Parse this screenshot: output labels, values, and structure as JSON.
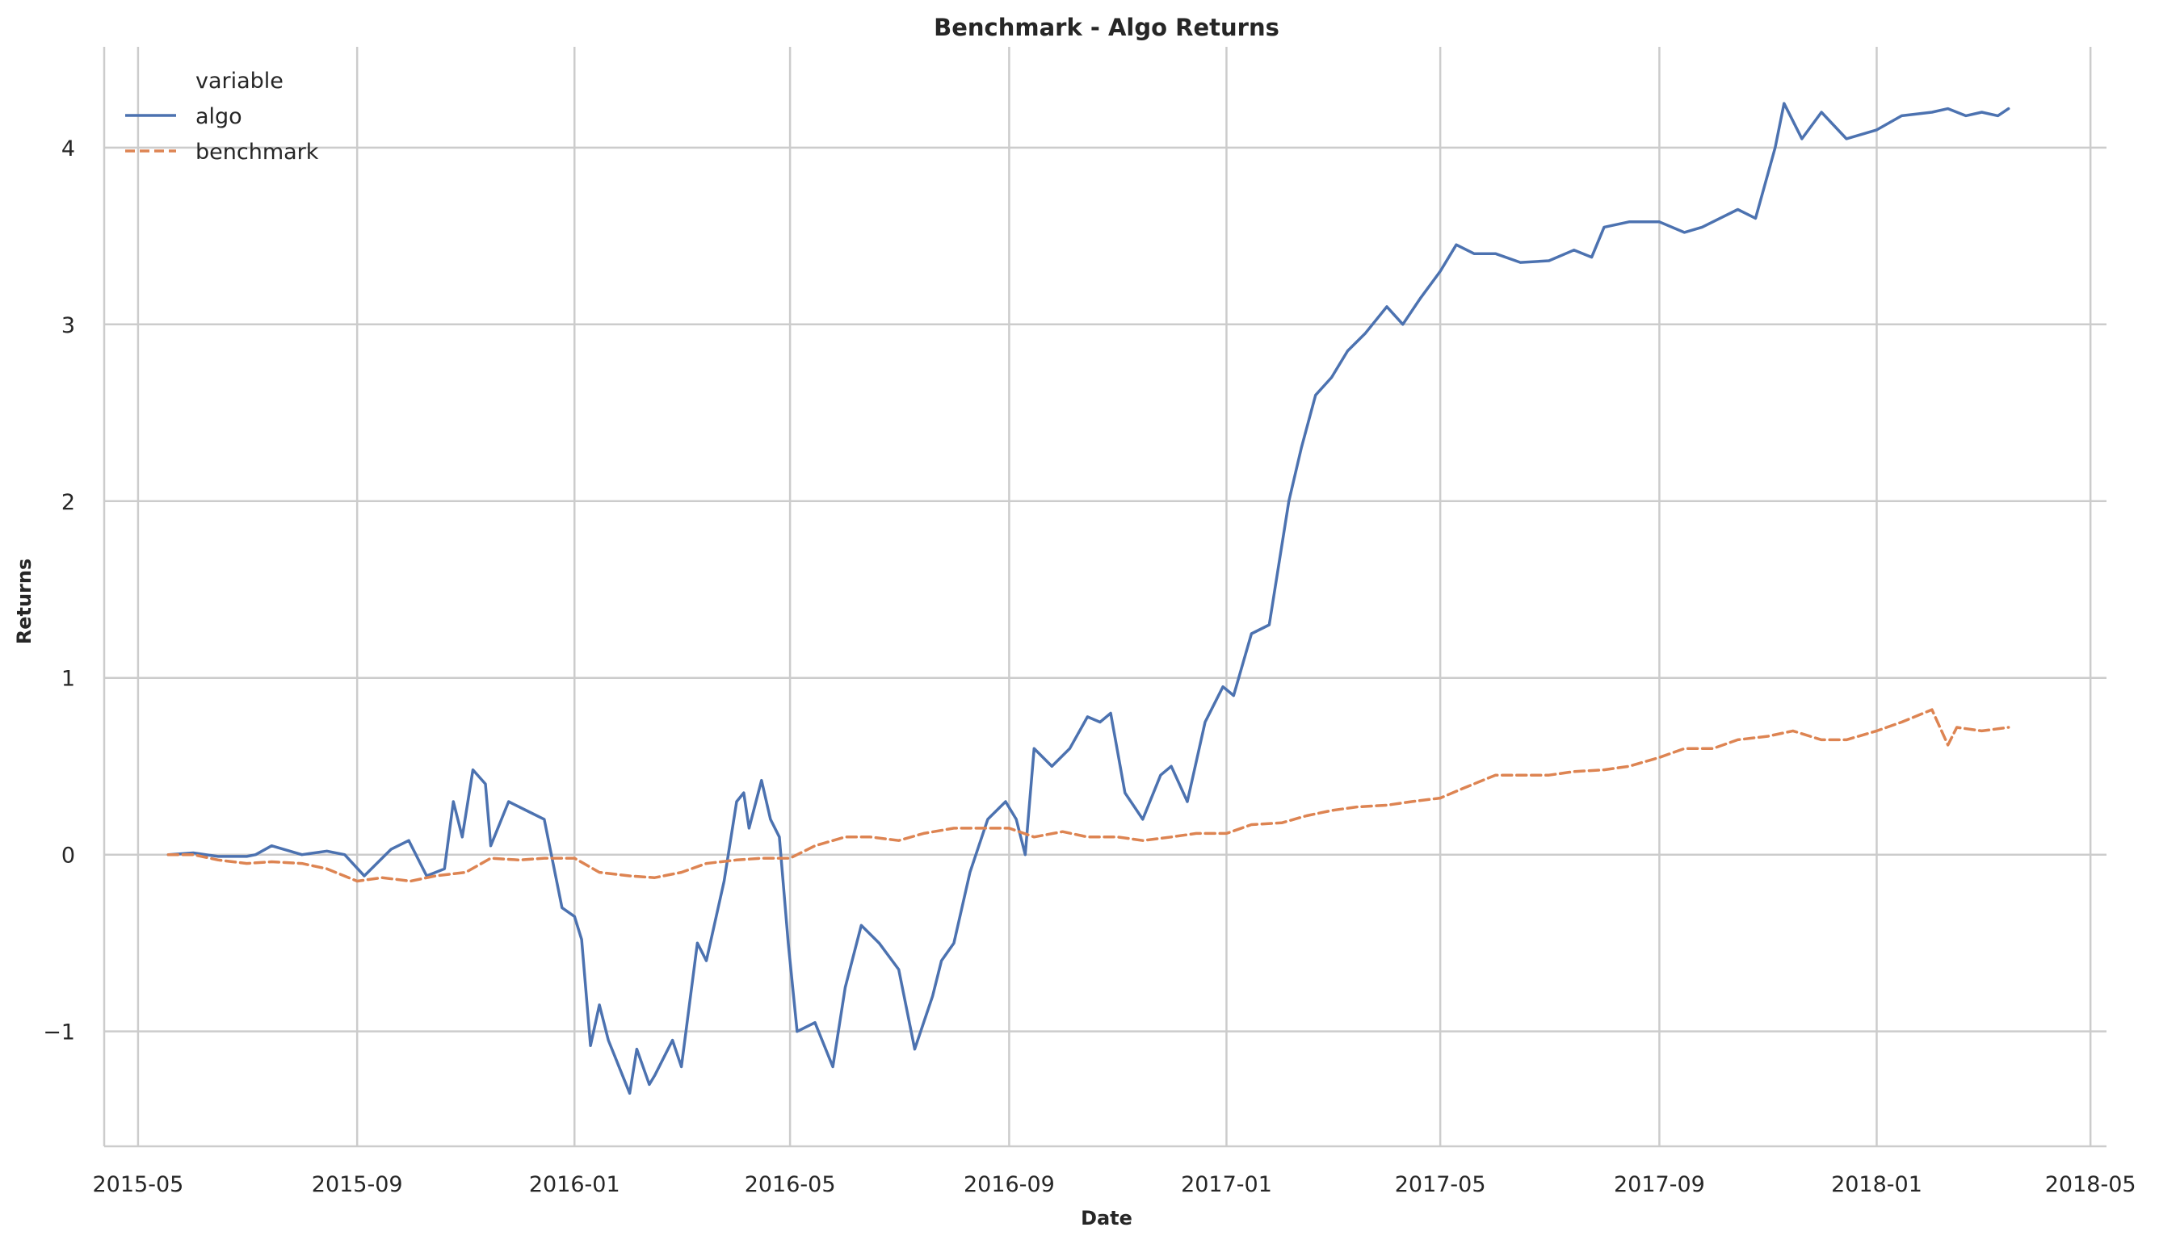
{
  "chart_data": {
    "type": "line",
    "title": "Benchmark - Algo Returns",
    "xlabel": "Date",
    "ylabel": "Returns",
    "x_ticks": [
      "2015-05",
      "2015-09",
      "2016-01",
      "2016-05",
      "2016-09",
      "2017-01",
      "2017-05",
      "2017-09",
      "2018-01",
      "2018-05"
    ],
    "y_ticks": [
      -1,
      0,
      1,
      2,
      3,
      4
    ],
    "y_tick_labels": [
      "−1",
      "0",
      "1",
      "2",
      "3",
      "4"
    ],
    "xlim": [
      "2015-04-12",
      "2018-05-10"
    ],
    "ylim": [
      -1.65,
      4.57
    ],
    "grid": true,
    "legend": {
      "title": "variable",
      "placement": "top-left",
      "entries": [
        "algo",
        "benchmark"
      ]
    },
    "series": [
      {
        "name": "algo",
        "color": "#4c72b0",
        "style": "solid",
        "x": [
          "2015-05-18",
          "2015-06-01",
          "2015-06-15",
          "2015-07-01",
          "2015-07-06",
          "2015-07-15",
          "2015-08-01",
          "2015-08-15",
          "2015-08-25",
          "2015-09-05",
          "2015-09-20",
          "2015-09-30",
          "2015-10-10",
          "2015-10-20",
          "2015-10-25",
          "2015-10-30",
          "2015-11-05",
          "2015-11-12",
          "2015-11-15",
          "2015-11-25",
          "2015-12-05",
          "2015-12-15",
          "2015-12-25",
          "2016-01-01",
          "2016-01-05",
          "2016-01-10",
          "2016-01-15",
          "2016-01-20",
          "2016-02-01",
          "2016-02-05",
          "2016-02-12",
          "2016-02-15",
          "2016-02-25",
          "2016-03-01",
          "2016-03-10",
          "2016-03-15",
          "2016-03-25",
          "2016-04-01",
          "2016-04-05",
          "2016-04-08",
          "2016-04-15",
          "2016-04-20",
          "2016-04-25",
          "2016-04-30",
          "2016-05-05",
          "2016-05-15",
          "2016-05-25",
          "2016-06-01",
          "2016-06-10",
          "2016-06-20",
          "2016-07-01",
          "2016-07-10",
          "2016-07-20",
          "2016-07-25",
          "2016-08-01",
          "2016-08-10",
          "2016-08-20",
          "2016-08-30",
          "2016-09-05",
          "2016-09-10",
          "2016-09-15",
          "2016-09-25",
          "2016-10-05",
          "2016-10-15",
          "2016-10-22",
          "2016-10-28",
          "2016-11-05",
          "2016-11-15",
          "2016-11-25",
          "2016-12-01",
          "2016-12-10",
          "2016-12-20",
          "2016-12-30",
          "2017-01-05",
          "2017-01-15",
          "2017-01-25",
          "2017-02-05",
          "2017-02-12",
          "2017-02-20",
          "2017-03-01",
          "2017-03-10",
          "2017-03-20",
          "2017-04-01",
          "2017-04-10",
          "2017-04-20",
          "2017-05-01",
          "2017-05-10",
          "2017-05-20",
          "2017-06-01",
          "2017-06-15",
          "2017-07-01",
          "2017-07-15",
          "2017-07-25",
          "2017-08-01",
          "2017-08-15",
          "2017-09-01",
          "2017-09-15",
          "2017-09-25",
          "2017-10-05",
          "2017-10-15",
          "2017-10-25",
          "2017-11-05",
          "2017-11-10",
          "2017-11-20",
          "2017-12-01",
          "2017-12-15",
          "2018-01-01",
          "2018-01-15",
          "2018-02-01",
          "2018-02-10",
          "2018-02-20",
          "2018-03-01",
          "2018-03-10",
          "2018-03-16"
        ],
        "y": [
          0.0,
          0.01,
          -0.01,
          -0.01,
          0.0,
          0.05,
          0.0,
          0.02,
          0.0,
          -0.12,
          0.03,
          0.08,
          -0.12,
          -0.08,
          0.3,
          0.1,
          0.48,
          0.4,
          0.05,
          0.3,
          0.25,
          0.2,
          -0.3,
          -0.35,
          -0.48,
          -1.08,
          -0.85,
          -1.05,
          -1.35,
          -1.1,
          -1.3,
          -1.25,
          -1.05,
          -1.2,
          -0.5,
          -0.6,
          -0.15,
          0.3,
          0.35,
          0.15,
          0.42,
          0.2,
          0.1,
          -0.5,
          -1.0,
          -0.95,
          -1.2,
          -0.75,
          -0.4,
          -0.5,
          -0.65,
          -1.1,
          -0.8,
          -0.6,
          -0.5,
          -0.1,
          0.2,
          0.3,
          0.2,
          0.0,
          0.6,
          0.5,
          0.6,
          0.78,
          0.75,
          0.8,
          0.35,
          0.2,
          0.45,
          0.5,
          0.3,
          0.75,
          0.95,
          0.9,
          1.25,
          1.3,
          2.0,
          2.3,
          2.6,
          2.7,
          2.85,
          2.95,
          3.1,
          3.0,
          3.15,
          3.3,
          3.45,
          3.4,
          3.4,
          3.35,
          3.36,
          3.42,
          3.38,
          3.55,
          3.58,
          3.58,
          3.52,
          3.55,
          3.6,
          3.65,
          3.6,
          4.0,
          4.25,
          4.05,
          4.2,
          4.05,
          4.1,
          4.18,
          4.2,
          4.22,
          4.18,
          4.2,
          4.18,
          4.22
        ]
      },
      {
        "name": "benchmark",
        "color": "#dd8452",
        "style": "dashed",
        "x": [
          "2015-05-18",
          "2015-06-01",
          "2015-06-15",
          "2015-07-01",
          "2015-07-15",
          "2015-08-01",
          "2015-08-15",
          "2015-09-01",
          "2015-09-15",
          "2015-10-01",
          "2015-10-15",
          "2015-11-01",
          "2015-11-15",
          "2015-12-01",
          "2015-12-15",
          "2016-01-01",
          "2016-01-15",
          "2016-02-01",
          "2016-02-15",
          "2016-03-01",
          "2016-03-15",
          "2016-04-01",
          "2016-04-15",
          "2016-05-01",
          "2016-05-15",
          "2016-06-01",
          "2016-06-15",
          "2016-07-01",
          "2016-07-15",
          "2016-08-01",
          "2016-08-15",
          "2016-09-01",
          "2016-09-15",
          "2016-10-01",
          "2016-10-15",
          "2016-11-01",
          "2016-11-15",
          "2016-12-01",
          "2016-12-15",
          "2017-01-01",
          "2017-01-15",
          "2017-02-01",
          "2017-02-15",
          "2017-03-01",
          "2017-03-15",
          "2017-04-01",
          "2017-04-15",
          "2017-05-01",
          "2017-05-15",
          "2017-06-01",
          "2017-06-15",
          "2017-07-01",
          "2017-07-15",
          "2017-08-01",
          "2017-08-15",
          "2017-09-01",
          "2017-09-15",
          "2017-10-01",
          "2017-10-15",
          "2017-11-01",
          "2017-11-15",
          "2017-12-01",
          "2017-12-15",
          "2018-01-01",
          "2018-01-15",
          "2018-02-01",
          "2018-02-10",
          "2018-02-15",
          "2018-03-01",
          "2018-03-16"
        ],
        "y": [
          0.0,
          0.0,
          -0.03,
          -0.05,
          -0.04,
          -0.05,
          -0.08,
          -0.15,
          -0.13,
          -0.15,
          -0.12,
          -0.1,
          -0.02,
          -0.03,
          -0.02,
          -0.02,
          -0.1,
          -0.12,
          -0.13,
          -0.1,
          -0.05,
          -0.03,
          -0.02,
          -0.02,
          0.05,
          0.1,
          0.1,
          0.08,
          0.12,
          0.15,
          0.15,
          0.15,
          0.1,
          0.13,
          0.1,
          0.1,
          0.08,
          0.1,
          0.12,
          0.12,
          0.17,
          0.18,
          0.22,
          0.25,
          0.27,
          0.28,
          0.3,
          0.32,
          0.38,
          0.45,
          0.45,
          0.45,
          0.47,
          0.48,
          0.5,
          0.55,
          0.6,
          0.6,
          0.65,
          0.67,
          0.7,
          0.65,
          0.65,
          0.7,
          0.75,
          0.82,
          0.62,
          0.72,
          0.7,
          0.72
        ]
      }
    ]
  }
}
